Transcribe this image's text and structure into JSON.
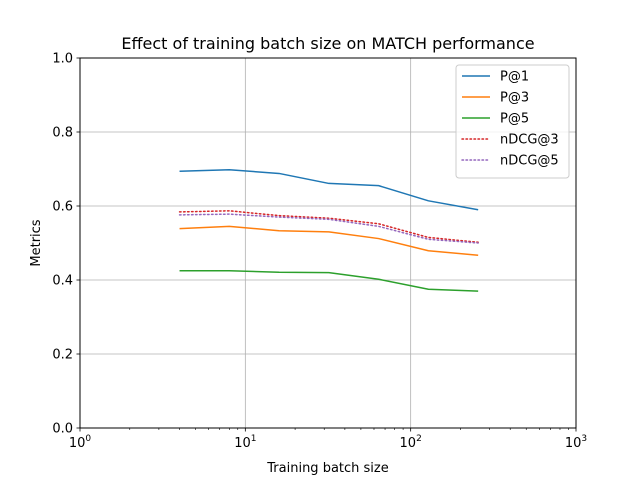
{
  "chart_data": {
    "type": "line",
    "title": "Effect of training batch size on MATCH performance",
    "xlabel": "Training batch size",
    "ylabel": "Metrics",
    "xscale": "log",
    "xlim": [
      1,
      1000
    ],
    "ylim": [
      0,
      1.0
    ],
    "grid": true,
    "legend_position": "top-right",
    "x_ticks": [
      {
        "value": 1,
        "base": "10",
        "exp": "0"
      },
      {
        "value": 10,
        "base": "10",
        "exp": "1"
      },
      {
        "value": 100,
        "base": "10",
        "exp": "2"
      },
      {
        "value": 1000,
        "base": "10",
        "exp": "3"
      }
    ],
    "y_ticks": [
      {
        "value": 0.0,
        "label": "0.0"
      },
      {
        "value": 0.2,
        "label": "0.2"
      },
      {
        "value": 0.4,
        "label": "0.4"
      },
      {
        "value": 0.6,
        "label": "0.6"
      },
      {
        "value": 0.8,
        "label": "0.8"
      },
      {
        "value": 1.0,
        "label": "1.0"
      }
    ],
    "x": [
      4,
      8,
      16,
      32,
      64,
      128,
      256
    ],
    "series": [
      {
        "name": "P@1",
        "color": "#1f77b4",
        "style": "solid",
        "values": [
          0.694,
          0.698,
          0.688,
          0.661,
          0.655,
          0.614,
          0.59
        ]
      },
      {
        "name": "P@3",
        "color": "#ff7f0e",
        "style": "solid",
        "values": [
          0.539,
          0.545,
          0.533,
          0.53,
          0.512,
          0.479,
          0.467
        ]
      },
      {
        "name": "P@5",
        "color": "#2ca02c",
        "style": "solid",
        "values": [
          0.425,
          0.425,
          0.421,
          0.42,
          0.402,
          0.375,
          0.37
        ]
      },
      {
        "name": "nDCG@3",
        "color": "#d62728",
        "style": "dotted",
        "values": [
          0.584,
          0.587,
          0.574,
          0.567,
          0.552,
          0.515,
          0.502
        ]
      },
      {
        "name": "nDCG@5",
        "color": "#9467bd",
        "style": "dotted",
        "values": [
          0.576,
          0.578,
          0.57,
          0.564,
          0.545,
          0.51,
          0.5
        ]
      }
    ]
  }
}
